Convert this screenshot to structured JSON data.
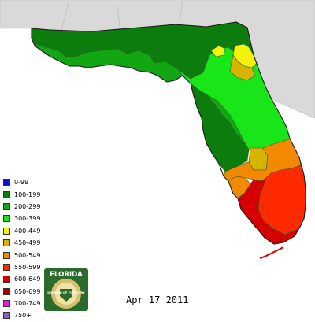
{
  "colors": {
    "background": "#ffffff",
    "neighbor_land": "#d9d9d9",
    "county_lines": "#2e5f2e",
    "state_outline": "#1c1c1c"
  },
  "legend": [
    {
      "label": "0-99",
      "color": "#0b10c8"
    },
    {
      "label": "100-199",
      "color": "#0c7d0c"
    },
    {
      "label": "200-299",
      "color": "#13a613"
    },
    {
      "label": "300-399",
      "color": "#19e619"
    },
    {
      "label": "400-449",
      "color": "#f2f20a"
    },
    {
      "label": "450-499",
      "color": "#d6b400"
    },
    {
      "label": "500-549",
      "color": "#f28a00"
    },
    {
      "label": "550-599",
      "color": "#ff2a00"
    },
    {
      "label": "600-649",
      "color": "#d60000"
    },
    {
      "label": "650-699",
      "color": "#a80000"
    },
    {
      "label": "700-749",
      "color": "#e81ae8"
    },
    {
      "label": "750+",
      "color": "#8e5fbf"
    }
  ],
  "date": "Apr 17 2011",
  "seal": {
    "top_text": "FLORIDA",
    "center_text": "DIVISION OF FORESTRY",
    "ring_text": "DEPARTMENT OF AGRICULTURE",
    "colors": {
      "ring": "#2a6a2a",
      "inner": "#f0e2a8",
      "band": "#d8c070"
    }
  }
}
